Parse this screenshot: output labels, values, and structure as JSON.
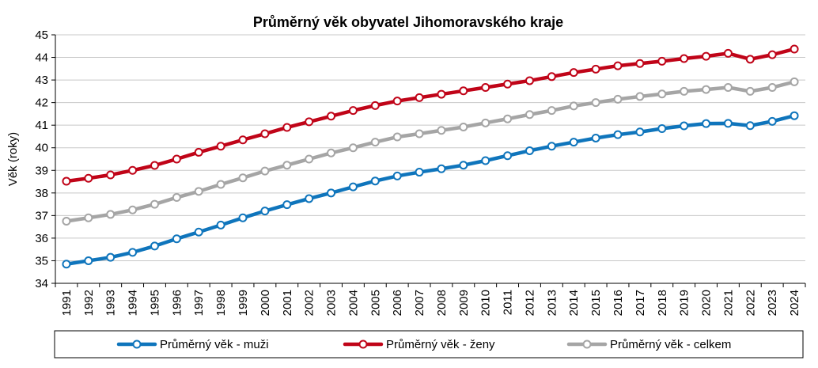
{
  "chart_data": {
    "type": "line",
    "title": "Průměrný věk obyvatel Jihomoravského kraje",
    "ylabel": "Věk (roky)",
    "xlabel": "",
    "ylim": [
      34,
      45
    ],
    "yticks": [
      "34",
      "35",
      "36",
      "37",
      "38",
      "39",
      "40",
      "41",
      "42",
      "43",
      "44",
      "45"
    ],
    "grid": "horizontal",
    "legend_position": "bottom",
    "categories": [
      "1991",
      "1992",
      "1993",
      "1994",
      "1995",
      "1996",
      "1997",
      "1998",
      "1999",
      "2000",
      "2001",
      "2002",
      "2003",
      "2004",
      "2005",
      "2006",
      "2007",
      "2008",
      "2009",
      "2010",
      "2011",
      "2012",
      "2013",
      "2014",
      "2015",
      "2016",
      "2017",
      "2018",
      "2019",
      "2020",
      "2021",
      "2022",
      "2023",
      "2024"
    ],
    "series": [
      {
        "name": "Průměrný věk - muži",
        "color": "#0f75bc",
        "values": [
          34.85,
          35.0,
          35.15,
          35.37,
          35.65,
          35.97,
          36.27,
          36.58,
          36.9,
          37.2,
          37.48,
          37.75,
          38.0,
          38.27,
          38.53,
          38.75,
          38.92,
          39.07,
          39.23,
          39.43,
          39.65,
          39.87,
          40.07,
          40.25,
          40.43,
          40.58,
          40.7,
          40.85,
          40.97,
          41.07,
          41.08,
          40.98,
          41.17,
          41.42
        ]
      },
      {
        "name": "Průměrný věk - ženy",
        "color": "#c00418",
        "values": [
          38.52,
          38.65,
          38.8,
          39.0,
          39.22,
          39.5,
          39.8,
          40.07,
          40.35,
          40.62,
          40.9,
          41.15,
          41.4,
          41.65,
          41.87,
          42.07,
          42.22,
          42.37,
          42.52,
          42.67,
          42.82,
          42.97,
          43.15,
          43.33,
          43.48,
          43.63,
          43.73,
          43.83,
          43.95,
          44.05,
          44.18,
          43.92,
          44.12,
          44.37
        ]
      },
      {
        "name": "Průměrný věk - celkem",
        "color": "#a5a5a5",
        "values": [
          36.75,
          36.9,
          37.05,
          37.25,
          37.5,
          37.8,
          38.07,
          38.38,
          38.67,
          38.97,
          39.23,
          39.5,
          39.77,
          40.0,
          40.25,
          40.48,
          40.62,
          40.77,
          40.92,
          41.1,
          41.28,
          41.47,
          41.65,
          41.85,
          42.0,
          42.15,
          42.27,
          42.38,
          42.5,
          42.58,
          42.67,
          42.5,
          42.67,
          42.92
        ]
      }
    ]
  }
}
